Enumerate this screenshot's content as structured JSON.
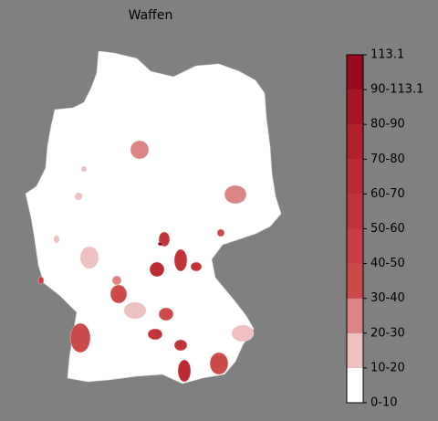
{
  "title": "Waffen",
  "colorbar": {
    "labels": [
      "0-10",
      "10-20",
      "20-30",
      "30-40",
      "40-50",
      "50-60",
      "60-70",
      "70-80",
      "80-90",
      "90-113.1",
      "113.1"
    ],
    "colors": [
      "#ffffff",
      "#efc0c0",
      "#dc8585",
      "#cd4a4a",
      "#c83e42",
      "#c2343a",
      "#bb2a32",
      "#b21f2b",
      "#a81525",
      "#990a1e"
    ]
  },
  "regions": {
    "values": [
      22,
      25,
      55,
      60,
      55,
      50,
      15,
      35,
      15,
      35,
      50,
      50,
      30,
      30,
      60,
      15,
      35,
      40,
      15,
      12,
      15,
      20,
      95
    ]
  }
}
